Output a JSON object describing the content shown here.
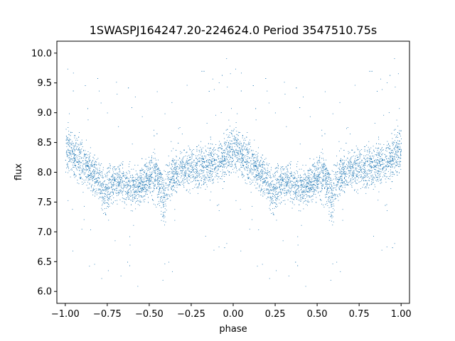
{
  "chart_data": {
    "type": "scatter",
    "title": "1SWASPJ164247.20-224624.0 Period 3547510.75s",
    "xlabel": "phase",
    "ylabel": "flux",
    "xlim": [
      -1.05,
      1.05
    ],
    "ylim": [
      5.8,
      10.2
    ],
    "x_ticks": [
      -1.0,
      -0.75,
      -0.5,
      -0.25,
      0.0,
      0.25,
      0.5,
      0.75,
      1.0
    ],
    "x_tick_labels": [
      "−1.00",
      "−0.75",
      "−0.50",
      "−0.25",
      "0.00",
      "0.25",
      "0.50",
      "0.75",
      "1.00"
    ],
    "y_ticks": [
      6.0,
      6.5,
      7.0,
      7.5,
      8.0,
      8.5,
      9.0,
      9.5,
      10.0
    ],
    "y_tick_labels": [
      "6.0",
      "6.5",
      "7.0",
      "7.5",
      "8.0",
      "8.5",
      "9.0",
      "9.5",
      "10.0"
    ],
    "grid": false,
    "marker_color": "#1f77b4",
    "series": [
      {
        "name": "",
        "phase_mirrored": true,
        "profile": [
          {
            "phase": 0.0,
            "median": 8.4,
            "spread": 0.35
          },
          {
            "phase": 0.04,
            "median": 8.3,
            "spread": 0.35
          },
          {
            "phase": 0.08,
            "median": 8.2,
            "spread": 0.35
          },
          {
            "phase": 0.12,
            "median": 8.1,
            "spread": 0.33
          },
          {
            "phase": 0.16,
            "median": 8.0,
            "spread": 0.3
          },
          {
            "phase": 0.2,
            "median": 7.9,
            "spread": 0.3
          },
          {
            "phase": 0.23,
            "median": 7.65,
            "spread": 0.35
          },
          {
            "phase": 0.27,
            "median": 7.8,
            "spread": 0.3
          },
          {
            "phase": 0.31,
            "median": 7.85,
            "spread": 0.28
          },
          {
            "phase": 0.35,
            "median": 7.8,
            "spread": 0.28
          },
          {
            "phase": 0.4,
            "median": 7.75,
            "spread": 0.28
          },
          {
            "phase": 0.45,
            "median": 7.8,
            "spread": 0.3
          },
          {
            "phase": 0.5,
            "median": 7.9,
            "spread": 0.3
          },
          {
            "phase": 0.55,
            "median": 7.95,
            "spread": 0.33
          },
          {
            "phase": 0.58,
            "median": 7.55,
            "spread": 0.38
          },
          {
            "phase": 0.62,
            "median": 7.9,
            "spread": 0.32
          },
          {
            "phase": 0.67,
            "median": 8.0,
            "spread": 0.3
          },
          {
            "phase": 0.72,
            "median": 8.05,
            "spread": 0.3
          },
          {
            "phase": 0.77,
            "median": 8.1,
            "spread": 0.32
          },
          {
            "phase": 0.82,
            "median": 8.1,
            "spread": 0.33
          },
          {
            "phase": 0.87,
            "median": 8.15,
            "spread": 0.33
          },
          {
            "phase": 0.92,
            "median": 8.2,
            "spread": 0.35
          },
          {
            "phase": 0.96,
            "median": 8.3,
            "spread": 0.35
          },
          {
            "phase": 1.0,
            "median": 8.4,
            "spread": 0.35
          }
        ]
      }
    ]
  }
}
